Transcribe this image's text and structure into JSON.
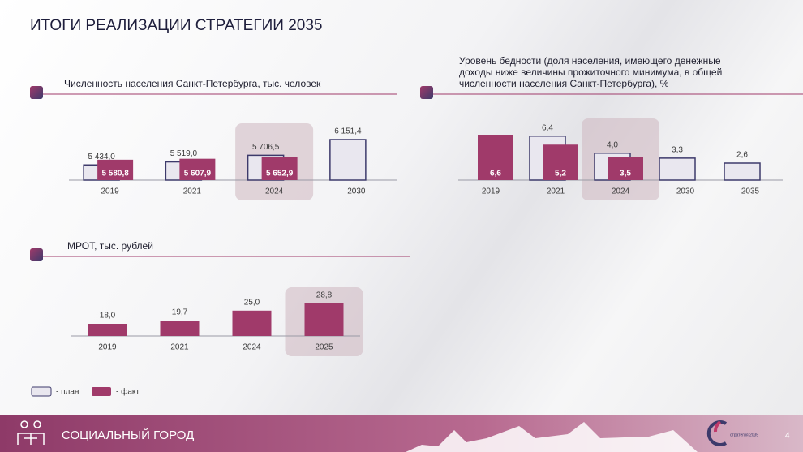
{
  "title": "ИТОГИ РЕАЛИЗАЦИИ СТРАТЕГИИ 2035",
  "chart_data": [
    {
      "type": "bar",
      "title": "Численность населения Санкт-Петербурга, тыс. человек",
      "categories": [
        "2019",
        "2021",
        "2024",
        "2030"
      ],
      "highlight_index": 2,
      "series": [
        {
          "name": "- план",
          "color": "#e9e7ef",
          "stroke": "#3d3a6b",
          "labels": "above",
          "values": [
            5434.0,
            5519.0,
            5706.5,
            6151.4
          ],
          "value_labels": [
            "5 434,0",
            "5 519,0",
            "5 706,5",
            "6 151,4"
          ]
        },
        {
          "name": "- факт",
          "color": "#a03a6a",
          "labels": "inside",
          "values": [
            5580.8,
            5607.9,
            5652.9,
            null
          ],
          "value_labels": [
            "5 580,8",
            "5 607,9",
            "5 652,9",
            null
          ]
        }
      ]
    },
    {
      "type": "bar",
      "title": "Уровень бедности (доля населения, имеющего денежные доходы ниже величины прожиточного минимума, в общей численности населения Санкт-Петербурга), %",
      "categories": [
        "2019",
        "2021",
        "2024",
        "2030",
        "2035"
      ],
      "highlight_index": 2,
      "series": [
        {
          "name": "- план",
          "color": "#e9e7ef",
          "stroke": "#3d3a6b",
          "labels": "above",
          "values": [
            null,
            6.4,
            4.0,
            3.3,
            2.6
          ],
          "value_labels": [
            null,
            "6,4",
            "4,0",
            "3,3",
            "2,6"
          ]
        },
        {
          "name": "- факт",
          "color": "#a03a6a",
          "labels": "inside",
          "values": [
            6.6,
            5.2,
            3.5,
            null,
            null
          ],
          "value_labels": [
            "6,6",
            "5,2",
            "3,5",
            null,
            null
          ]
        }
      ]
    },
    {
      "type": "bar",
      "title": "МРОТ, тыс. рублей",
      "categories": [
        "2019",
        "2021",
        "2024",
        "2025"
      ],
      "highlight_index": 3,
      "series": [
        {
          "name": "- факт",
          "color": "#a03a6a",
          "labels": "above",
          "values": [
            18.0,
            19.7,
            25.0,
            28.8
          ],
          "value_labels": [
            "18,0",
            "19,7",
            "25,0",
            "28,8"
          ]
        }
      ]
    }
  ],
  "footer": {
    "section": "СОЦИАЛЬНЫЙ ГОРОД",
    "logo": "стратегия 2035",
    "page": "4"
  }
}
